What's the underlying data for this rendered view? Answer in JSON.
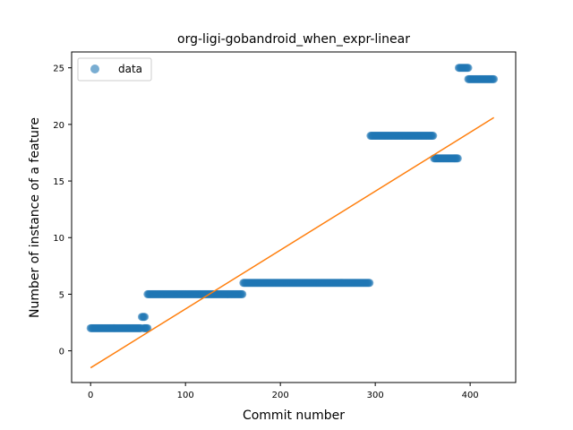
{
  "chart_data": {
    "type": "scatter",
    "title": "org-ligi-gobandroid_when_expr-linear",
    "xlabel": "Commit number",
    "ylabel": "Number of instance of a feature",
    "xlim": [
      -20,
      448
    ],
    "ylim": [
      -2.8,
      26.4
    ],
    "xticks": [
      0,
      100,
      200,
      300,
      400
    ],
    "yticks": [
      0,
      5,
      10,
      15,
      20,
      25
    ],
    "grid": false,
    "legend": {
      "position": "top-left",
      "entries": [
        "data"
      ]
    },
    "colors": {
      "points": "#1f77b4",
      "fit": "#ff7f0e"
    },
    "series": [
      {
        "name": "data",
        "kind": "scatter",
        "segments": [
          {
            "x_start": 0,
            "x_end": 53,
            "y": 2
          },
          {
            "x_start": 54,
            "x_end": 57,
            "y": 3
          },
          {
            "x_start": 56,
            "x_end": 60,
            "y": 2
          },
          {
            "x_start": 60,
            "x_end": 160,
            "y": 5
          },
          {
            "x_start": 161,
            "x_end": 294,
            "y": 6
          },
          {
            "x_start": 295,
            "x_end": 361,
            "y": 19
          },
          {
            "x_start": 362,
            "x_end": 387,
            "y": 17
          },
          {
            "x_start": 388,
            "x_end": 398,
            "y": 25
          },
          {
            "x_start": 398,
            "x_end": 425,
            "y": 24
          }
        ]
      },
      {
        "name": "",
        "kind": "line",
        "x": [
          0,
          425
        ],
        "y": [
          -1.5,
          20.6
        ]
      }
    ]
  }
}
